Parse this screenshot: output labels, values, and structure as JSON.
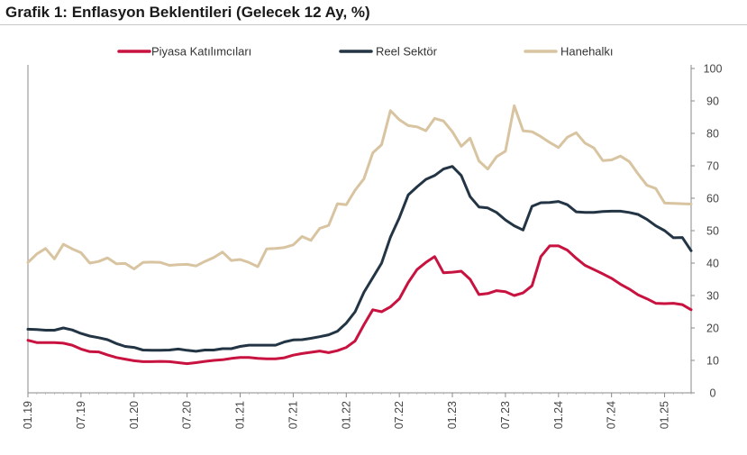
{
  "title": "Grafik 1: Enflasyon Beklentileri (Gelecek 12 Ay, %)",
  "chart_data": {
    "type": "line",
    "title": "Grafik 1: Enflasyon Beklentileri (Gelecek 12 Ay, %)",
    "xlabel": "",
    "ylabel": "",
    "ylim": [
      0,
      100
    ],
    "yticks": [
      0,
      10,
      20,
      30,
      40,
      50,
      60,
      70,
      80,
      90,
      100
    ],
    "y_axis_side": "right",
    "grid": false,
    "legend_position": "top",
    "x_tick_labels": [
      "01.19",
      "07.19",
      "01.20",
      "07.20",
      "01.21",
      "07.21",
      "01.22",
      "07.22",
      "01.23",
      "07.23",
      "01.24",
      "07.24",
      "01.25"
    ],
    "x_start": "01.19",
    "x_end": "01.25",
    "series": [
      {
        "name": "Piyasa Katılımcıları",
        "color": "#c8123f",
        "values": [
          16.2,
          15.5,
          15.5,
          15.5,
          15.3,
          14.7,
          13.5,
          12.7,
          12.6,
          11.7,
          10.9,
          10.4,
          9.9,
          9.6,
          9.6,
          9.7,
          9.6,
          9.3,
          9.0,
          9.3,
          9.7,
          10.0,
          10.2,
          10.6,
          10.9,
          10.9,
          10.6,
          10.5,
          10.5,
          10.8,
          11.6,
          12.1,
          12.5,
          12.9,
          12.4,
          13.0,
          14.0,
          16.0,
          21.0,
          25.6,
          25.0,
          26.5,
          29.0,
          34.0,
          38.0,
          40.2,
          42.0,
          37.0,
          37.2,
          37.5,
          35.0,
          30.3,
          30.6,
          31.5,
          31.2,
          30.0,
          30.8,
          33.0,
          42.0,
          45.3,
          45.3,
          44.0,
          41.5,
          39.3,
          38.0,
          36.7,
          35.3,
          33.5,
          32.0,
          30.2,
          29.0,
          27.6,
          27.5,
          27.6,
          27.2,
          25.6
        ]
      },
      {
        "name": "Reel Sektör",
        "color": "#233545",
        "values": [
          19.6,
          19.5,
          19.3,
          19.3,
          20.0,
          19.4,
          18.3,
          17.5,
          17.0,
          16.4,
          15.2,
          14.3,
          14.0,
          13.2,
          13.1,
          13.1,
          13.2,
          13.5,
          13.1,
          12.8,
          13.2,
          13.2,
          13.6,
          13.6,
          14.3,
          14.7,
          14.7,
          14.7,
          14.7,
          15.7,
          16.3,
          16.4,
          16.8,
          17.3,
          17.9,
          19.0,
          21.5,
          25.0,
          31.0,
          35.5,
          40.0,
          48.0,
          54.0,
          61.0,
          63.5,
          65.8,
          67.0,
          69.0,
          69.8,
          67.0,
          60.5,
          57.3,
          57.0,
          55.6,
          53.3,
          51.5,
          50.2,
          57.5,
          58.6,
          58.7,
          59.0,
          58.0,
          55.8,
          55.6,
          55.6,
          55.9,
          56.0,
          56.0,
          55.6,
          55.0,
          53.5,
          51.5,
          50.0,
          47.8,
          47.9,
          43.8
        ]
      },
      {
        "name": "Hanehalkı",
        "color": "#d8c4a0",
        "values": [
          40.2,
          42.8,
          44.5,
          41.3,
          45.8,
          44.4,
          43.2,
          40.0,
          40.5,
          41.6,
          39.8,
          39.9,
          38.2,
          40.2,
          40.3,
          40.2,
          39.3,
          39.5,
          39.6,
          39.1,
          40.5,
          41.7,
          43.4,
          40.8,
          41.1,
          40.2,
          38.9,
          44.4,
          44.5,
          44.8,
          45.6,
          48.2,
          47.0,
          50.7,
          51.6,
          58.3,
          58.0,
          62.5,
          66.0,
          74.0,
          76.5,
          87.0,
          84.2,
          82.4,
          82.0,
          80.8,
          84.6,
          83.8,
          80.5,
          76.0,
          78.5,
          71.5,
          69.0,
          72.8,
          74.5,
          88.5,
          80.8,
          80.5,
          79.0,
          77.2,
          75.6,
          78.8,
          80.2,
          77.0,
          75.5,
          71.6,
          71.8,
          73.0,
          71.3,
          67.5,
          64.0,
          63.0,
          58.5,
          58.4,
          58.3,
          58.2
        ]
      }
    ]
  }
}
